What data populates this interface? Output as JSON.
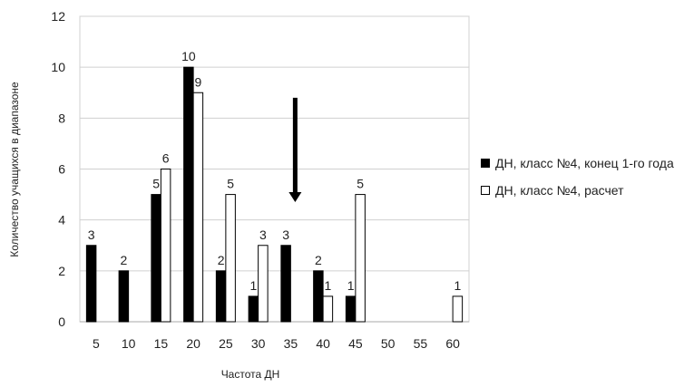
{
  "chart_data": {
    "type": "bar",
    "title": "",
    "xlabel": "Частота ДН",
    "ylabel": "Количество учащихся в диапазоне",
    "categories": [
      "5",
      "10",
      "15",
      "20",
      "25",
      "30",
      "35",
      "40",
      "45",
      "50",
      "55",
      "60"
    ],
    "ylim": [
      0,
      12
    ],
    "yticks": [
      0,
      2,
      4,
      6,
      8,
      10,
      12
    ],
    "grid": "horizontal",
    "legend_position": "right",
    "series": [
      {
        "name": "ДН, класс №4, конец 1-го года",
        "color": "#000000",
        "values": [
          3,
          2,
          5,
          10,
          2,
          1,
          3,
          2,
          1,
          null,
          null,
          null
        ],
        "labels": [
          "3",
          "2",
          "5",
          "10",
          "2",
          "1",
          "3",
          "2",
          "1",
          "",
          "",
          ""
        ]
      },
      {
        "name": "ДН, класс №4, расчет",
        "color": "#ffffff",
        "values": [
          null,
          null,
          6,
          9,
          5,
          3,
          null,
          1,
          5,
          null,
          null,
          1
        ],
        "labels": [
          "",
          "",
          "6",
          "9",
          "5",
          "3",
          "",
          "1",
          "5",
          "",
          "",
          "1"
        ]
      }
    ],
    "annotation": {
      "type": "arrow-down",
      "category": "35",
      "from": 8.8,
      "to": 4.7
    }
  }
}
